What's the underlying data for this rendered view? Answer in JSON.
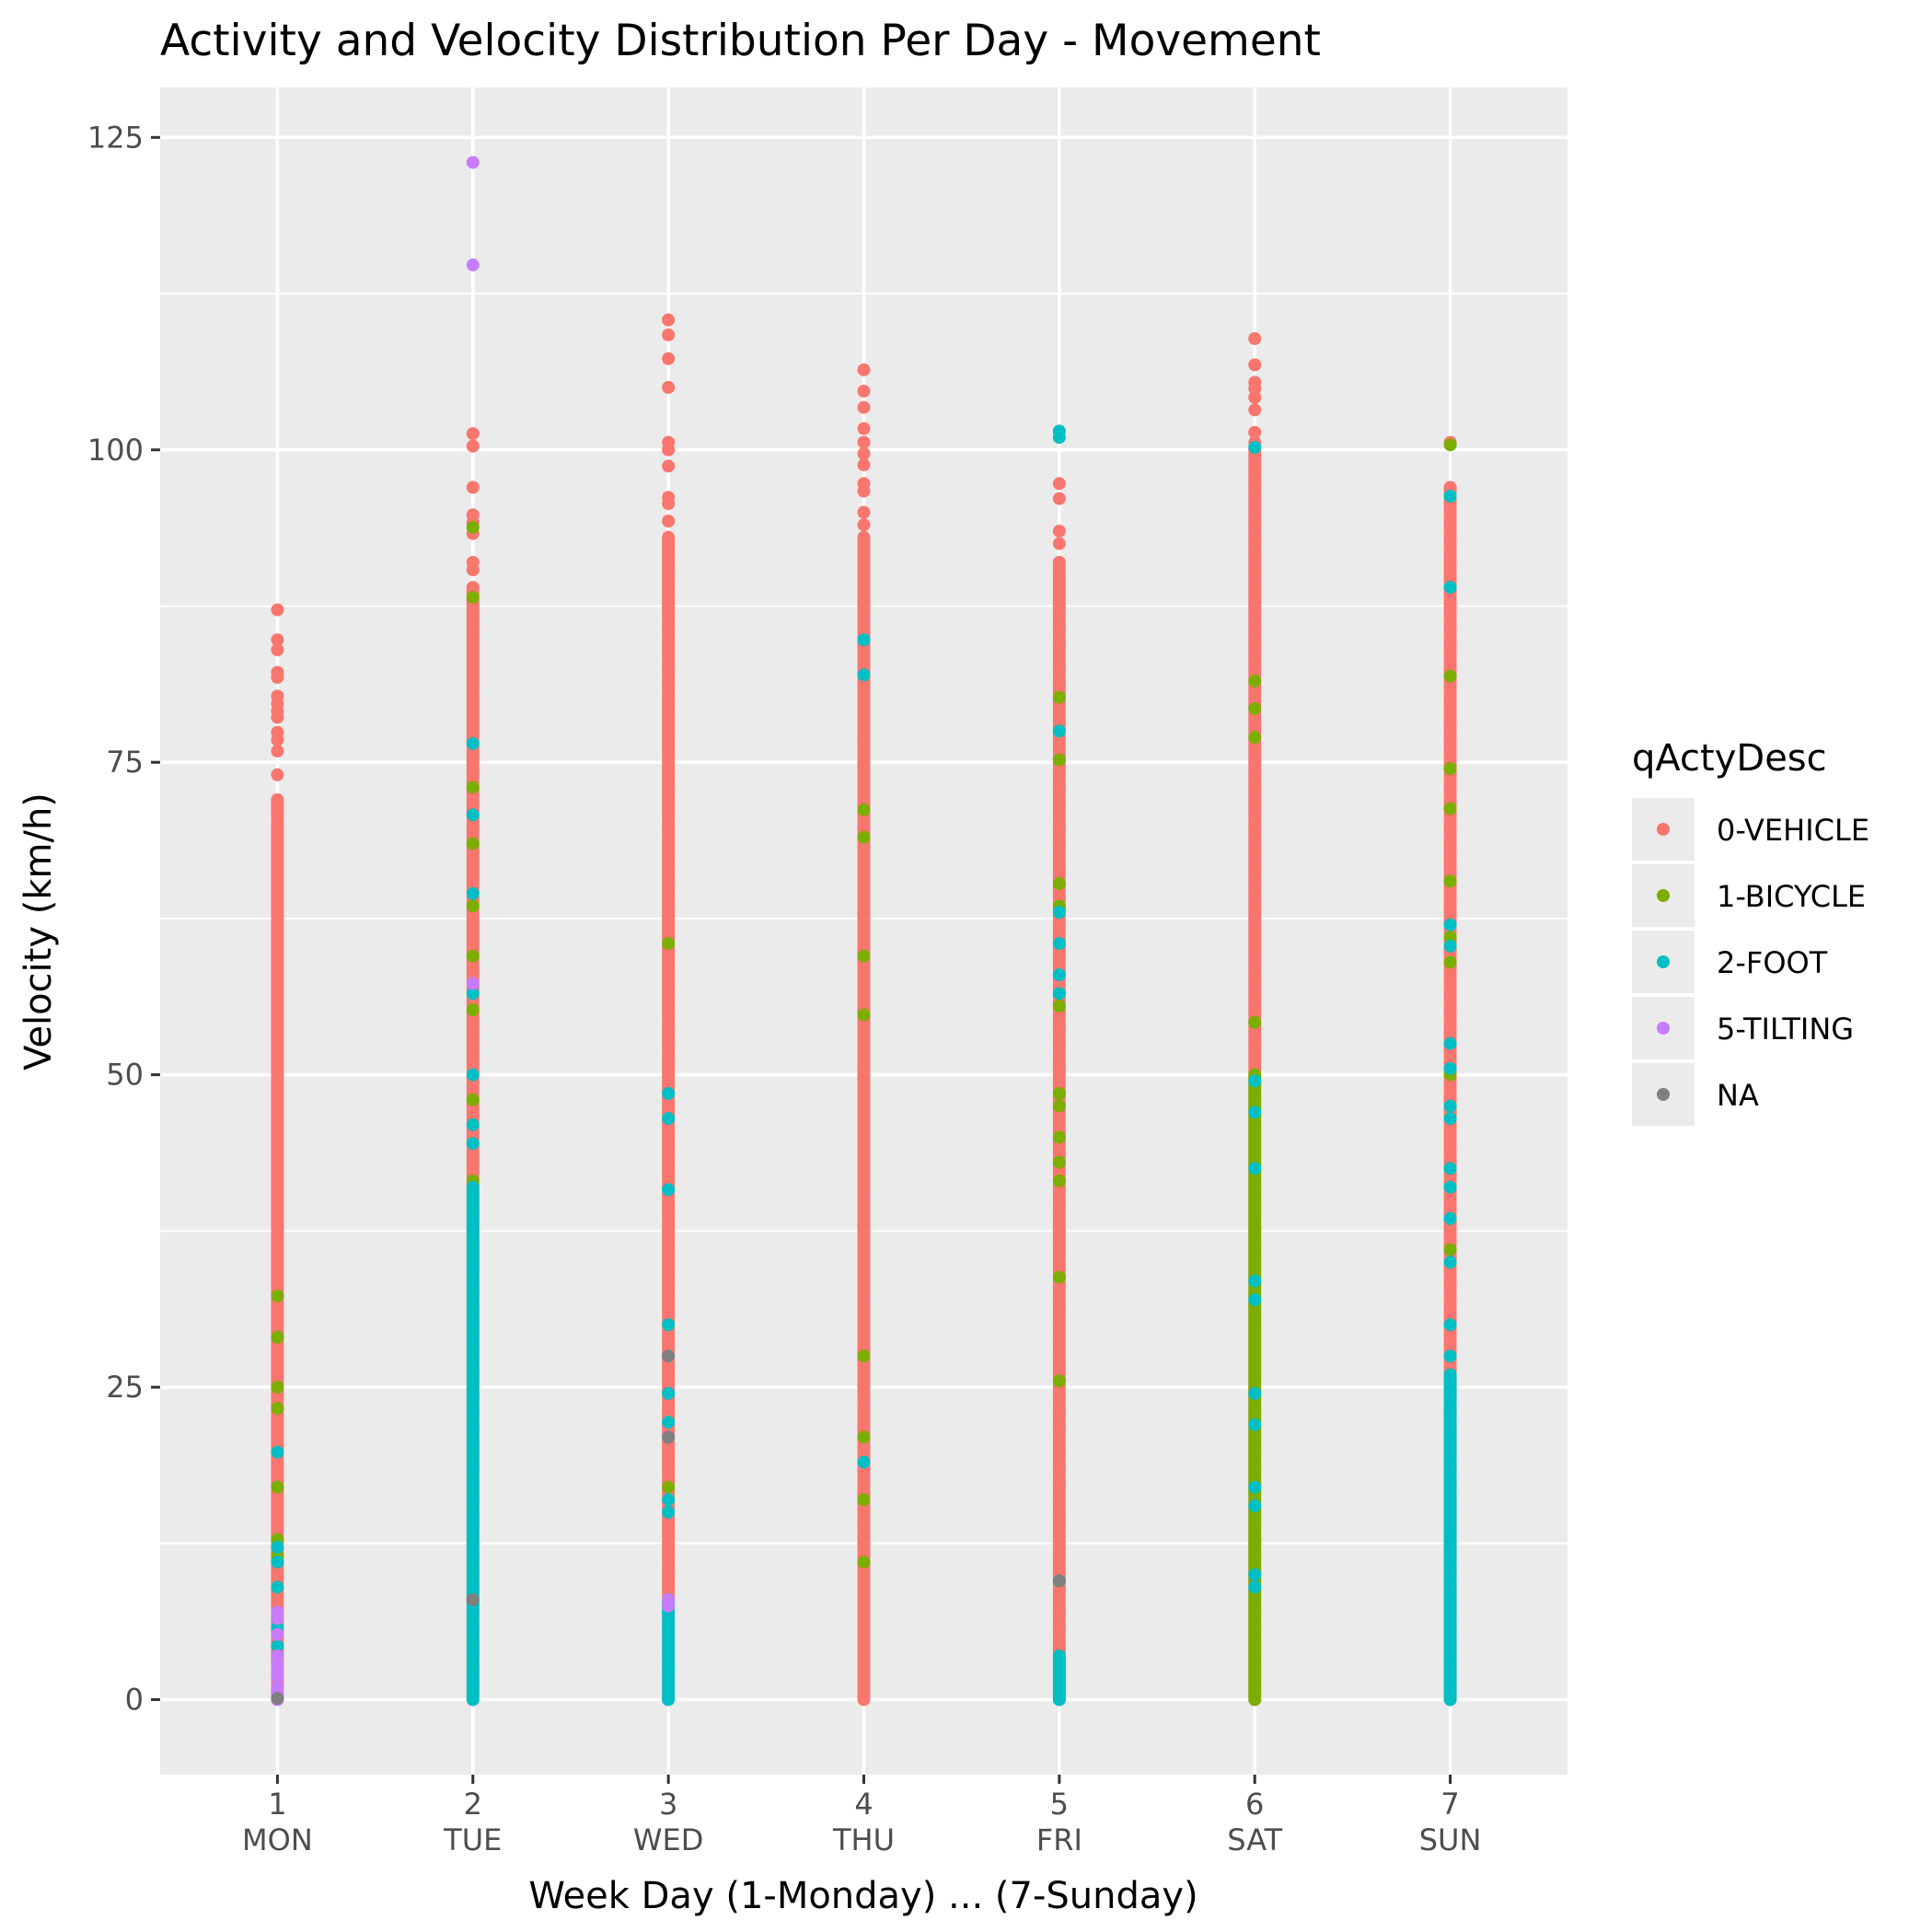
{
  "chart_data": {
    "type": "scatter",
    "title": "Activity and Velocity Distribution Per Day - Movement",
    "xlabel": "Week Day (1-Monday) ... (7-Sunday)",
    "ylabel": "Velocity (km/h)",
    "x_ticks": [
      {
        "value": 1,
        "label": "1",
        "day": "MON"
      },
      {
        "value": 2,
        "label": "2",
        "day": "TUE"
      },
      {
        "value": 3,
        "label": "3",
        "day": "WED"
      },
      {
        "value": 4,
        "label": "4",
        "day": "THU"
      },
      {
        "value": 5,
        "label": "5",
        "day": "FRI"
      },
      {
        "value": 6,
        "label": "6",
        "day": "SAT"
      },
      {
        "value": 7,
        "label": "7",
        "day": "SUN"
      }
    ],
    "y_ticks": [
      0,
      25,
      50,
      75,
      100,
      125
    ],
    "xlim": [
      0.4,
      7.6
    ],
    "ylim": [
      -6,
      129
    ],
    "grid": true,
    "legend": {
      "title": "qActyDesc",
      "placement": "right",
      "entries": [
        {
          "label": "0-VEHICLE",
          "color": "#F8766D"
        },
        {
          "label": "1-BICYCLE",
          "color": "#7CAE00"
        },
        {
          "label": "2-FOOT",
          "color": "#00BFC4"
        },
        {
          "label": "5-TILTING",
          "color": "#C77CFF"
        },
        {
          "label": "NA",
          "color": "#7F7F7F"
        }
      ]
    },
    "series": [
      {
        "name": "0-VEHICLE",
        "color": "#F8766D",
        "points": [
          {
            "day": 1,
            "range": [
              0,
              72
            ]
          },
          {
            "day": 1,
            "values": [
              87.2,
              84.8,
              84.0,
              82.2,
              81.8,
              80.3,
              79.7,
              79.1,
              78.6,
              77.4,
              76.8,
              75.9,
              74.0
            ]
          },
          {
            "day": 2,
            "range": [
              0,
              89
            ]
          },
          {
            "day": 2,
            "values": [
              101.3,
              100.3,
              97.0,
              94.8,
              94.2,
              93.3,
              91.0,
              90.4
            ]
          },
          {
            "day": 3,
            "range": [
              0,
              93
            ]
          },
          {
            "day": 3,
            "values": [
              110.4,
              109.2,
              107.3,
              105.0,
              100.6,
              100.0,
              98.7,
              96.2,
              95.7,
              94.3
            ]
          },
          {
            "day": 4,
            "range": [
              0,
              93
            ]
          },
          {
            "day": 4,
            "values": [
              106.4,
              104.7,
              103.4,
              101.7,
              100.6,
              99.7,
              98.8,
              97.3,
              96.7,
              95.0,
              94.0
            ]
          },
          {
            "day": 5,
            "range": [
              0,
              91
            ]
          },
          {
            "day": 5,
            "values": [
              97.3,
              96.1,
              93.5,
              92.5
            ]
          },
          {
            "day": 6,
            "range": [
              0,
              100
            ]
          },
          {
            "day": 6,
            "values": [
              108.9,
              106.8,
              105.4,
              104.9,
              104.2,
              103.2,
              101.4,
              100.6
            ]
          },
          {
            "day": 7,
            "range": [
              0,
              97
            ]
          },
          {
            "day": 7,
            "values": [
              100.6
            ]
          }
        ]
      },
      {
        "name": "1-BICYCLE",
        "color": "#7CAE00",
        "points": [
          {
            "day": 1,
            "values": [
              32.3,
              29.0,
              25.0,
              23.3,
              17.0,
              12.8,
              11.5
            ]
          },
          {
            "day": 2,
            "values": [
              93.8,
              88.2,
              73.0,
              68.5,
              63.5,
              59.5,
              55.2,
              48.0,
              41.5,
              35.5,
              27.5
            ]
          },
          {
            "day": 3,
            "values": [
              60.5,
              17.0
            ]
          },
          {
            "day": 4,
            "values": [
              71.2,
              69.0,
              59.5,
              54.8,
              27.5,
              21.0,
              16.0,
              11.0
            ]
          },
          {
            "day": 5,
            "values": [
              80.2,
              75.2,
              65.3,
              63.5,
              55.5,
              48.5,
              47.5,
              45.0,
              43.0,
              41.5,
              33.8,
              25.5
            ]
          },
          {
            "day": 6,
            "range": [
              0,
              50
            ]
          },
          {
            "day": 6,
            "values": [
              81.5,
              79.3,
              77.0,
              54.2
            ]
          },
          {
            "day": 7,
            "values": [
              100.4,
              81.9,
              74.5,
              71.3,
              65.5,
              61.0,
              59.0,
              50.0,
              36.0
            ]
          }
        ]
      },
      {
        "name": "2-FOOT",
        "color": "#00BFC4",
        "points": [
          {
            "day": 1,
            "values": [
              19.8,
              12.2,
              11.0,
              9.0,
              6.5,
              5.8,
              4.3,
              3.5
            ]
          },
          {
            "day": 2,
            "range": [
              0,
              41
            ]
          },
          {
            "day": 2,
            "values": [
              76.5,
              70.8,
              64.5,
              56.5,
              50.0,
              46.0,
              44.5
            ]
          },
          {
            "day": 3,
            "range": [
              0,
              8
            ]
          },
          {
            "day": 3,
            "values": [
              48.5,
              46.5,
              40.8,
              30.0,
              27.5,
              24.5,
              22.2,
              21.0,
              16.0,
              15.0
            ]
          },
          {
            "day": 4,
            "values": [
              84.8,
              82.0,
              19.0
            ]
          },
          {
            "day": 5,
            "range": [
              0,
              3.5
            ]
          },
          {
            "day": 5,
            "values": [
              101.5,
              101.0,
              77.5,
              63.0,
              60.5,
              58.0,
              56.5,
              9.5
            ]
          },
          {
            "day": 6,
            "values": [
              100.2,
              49.5,
              47.0,
              42.5,
              33.5,
              32.0,
              24.5,
              22.0,
              17.0,
              15.5,
              10.0,
              9.0
            ]
          },
          {
            "day": 7,
            "range": [
              0,
              26
            ]
          },
          {
            "day": 7,
            "values": [
              96.3,
              89.0,
              62.0,
              60.3,
              52.5,
              50.5,
              47.5,
              46.5,
              42.5,
              41.0,
              38.5,
              35.0,
              30.0,
              27.5
            ]
          }
        ]
      },
      {
        "name": "5-TILTING",
        "color": "#C77CFF",
        "points": [
          {
            "day": 1,
            "values": [
              7.0,
              6.5,
              5.2,
              3.5,
              2.8,
              2.3,
              1.8,
              1.0,
              0.5,
              0.0
            ]
          },
          {
            "day": 2,
            "values": [
              123.0,
              114.8,
              57.3
            ]
          },
          {
            "day": 3,
            "values": [
              8.0,
              7.5
            ]
          }
        ]
      },
      {
        "name": "NA",
        "color": "#7F7F7F",
        "points": [
          {
            "day": 1,
            "values": [
              0.1
            ]
          },
          {
            "day": 2,
            "values": [
              8.0
            ]
          },
          {
            "day": 3,
            "values": [
              27.5,
              21.0
            ]
          },
          {
            "day": 5,
            "values": [
              9.5
            ]
          }
        ]
      }
    ]
  }
}
